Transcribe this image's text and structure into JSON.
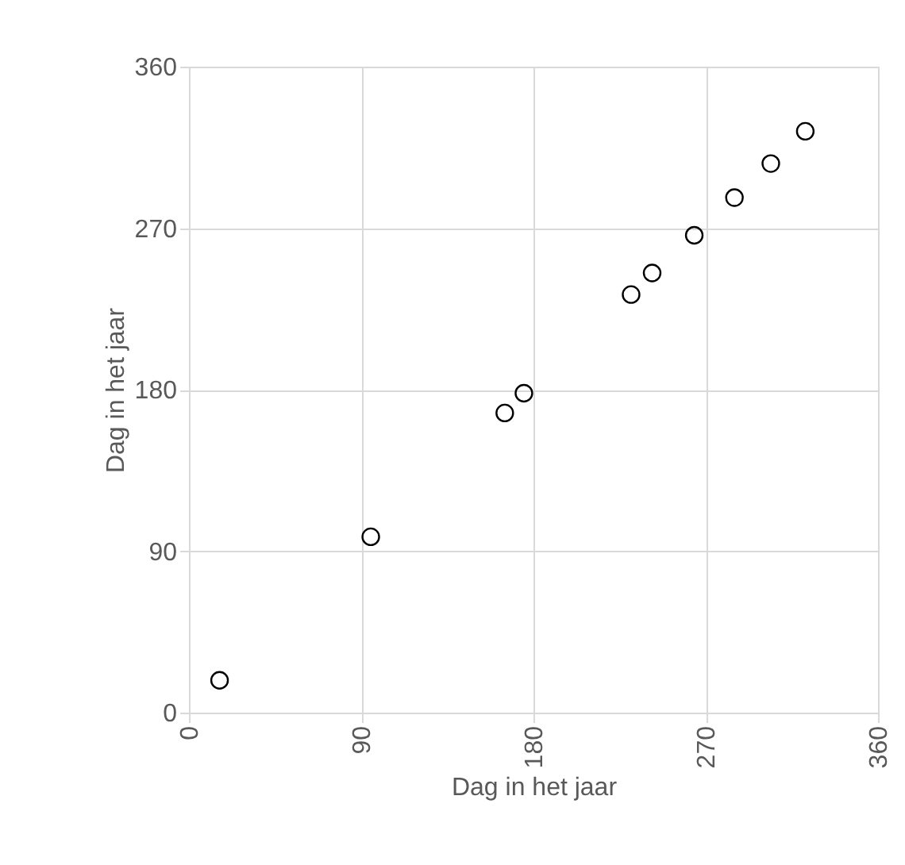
{
  "chart_data": {
    "type": "scatter",
    "xlabel": "Dag in het jaar",
    "ylabel": "Dag in het jaar",
    "x": [
      16,
      95,
      165,
      175,
      231,
      242,
      264,
      285,
      304,
      322
    ],
    "values": [
      18,
      98,
      167,
      178,
      233,
      245,
      266,
      287,
      306,
      324
    ],
    "color": "#000000",
    "marker": "circle",
    "xlim": [
      0,
      360
    ],
    "ylim": [
      0,
      360
    ],
    "xticks": [
      0,
      90,
      180,
      270,
      360
    ],
    "yticks": [
      0,
      90,
      180,
      270,
      360
    ],
    "grid": true
  }
}
